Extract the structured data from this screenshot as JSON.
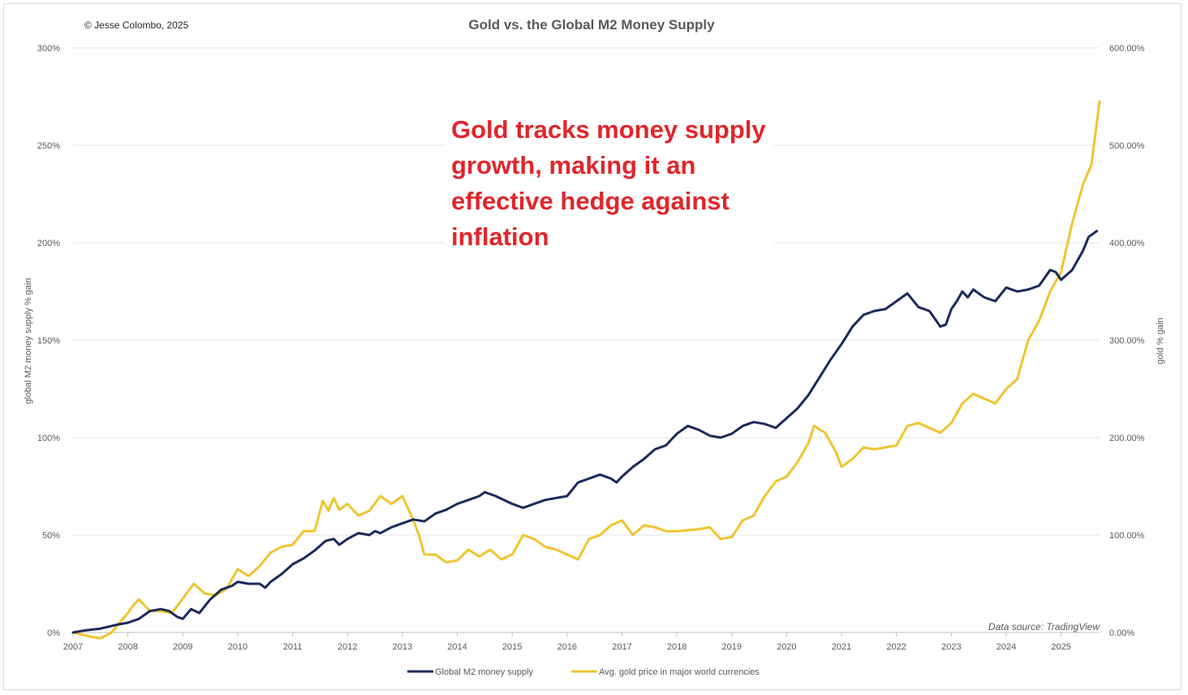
{
  "header": {
    "copyright": "© Jesse Colombo, 2025",
    "title": "Gold vs. the Global M2 Money Supply"
  },
  "annotation": {
    "lines": [
      "Gold tracks money supply",
      "growth, making it an",
      "effective hedge against",
      "inflation"
    ]
  },
  "source_note": "Data source: TradingView",
  "colors": {
    "m2": "#1b2a5c",
    "gold": "#f0c430",
    "annotation": "#e0262b",
    "grid": "#e3e3e3",
    "text": "#595959"
  },
  "chart_data": {
    "type": "line",
    "title": "Gold vs. the Global M2 Money Supply",
    "ylabel_left": "global M2 money supply % gain",
    "ylabel_right": "gold % gain",
    "ylim_left": [
      0,
      300
    ],
    "ylim_right": [
      0,
      600
    ],
    "xlim": [
      2007,
      2025.7
    ],
    "grid": true,
    "legend_position": "bottom",
    "y_ticks_left": [
      "0%",
      "50%",
      "100%",
      "150%",
      "200%",
      "250%",
      "300%"
    ],
    "y_ticks_right": [
      "0.00%",
      "100.00%",
      "200.00%",
      "300.00%",
      "400.00%",
      "500.00%",
      "600.00%"
    ],
    "x_ticks": [
      "2007",
      "2008",
      "2009",
      "2010",
      "2011",
      "2012",
      "2013",
      "2014",
      "2015",
      "2016",
      "2017",
      "2018",
      "2019",
      "2020",
      "2021",
      "2022",
      "2023",
      "2024",
      "2025"
    ],
    "series": [
      {
        "name": "Global M2 money supply",
        "axis": "left",
        "x": [
          2007.0,
          2007.2,
          2007.5,
          2007.8,
          2008.0,
          2008.2,
          2008.4,
          2008.6,
          2008.75,
          2008.9,
          2009.0,
          2009.15,
          2009.3,
          2009.5,
          2009.7,
          2009.9,
          2010.0,
          2010.2,
          2010.4,
          2010.5,
          2010.6,
          2010.8,
          2011.0,
          2011.2,
          2011.4,
          2011.6,
          2011.75,
          2011.85,
          2012.0,
          2012.2,
          2012.4,
          2012.5,
          2012.6,
          2012.8,
          2013.0,
          2013.2,
          2013.4,
          2013.6,
          2013.8,
          2014.0,
          2014.2,
          2014.4,
          2014.5,
          2014.7,
          2015.0,
          2015.2,
          2015.4,
          2015.6,
          2015.8,
          2016.0,
          2016.2,
          2016.4,
          2016.6,
          2016.8,
          2016.9,
          2017.0,
          2017.2,
          2017.4,
          2017.6,
          2017.8,
          2018.0,
          2018.2,
          2018.4,
          2018.6,
          2018.8,
          2019.0,
          2019.2,
          2019.4,
          2019.6,
          2019.8,
          2020.0,
          2020.2,
          2020.4,
          2020.6,
          2020.8,
          2021.0,
          2021.2,
          2021.4,
          2021.6,
          2021.8,
          2022.0,
          2022.2,
          2022.4,
          2022.6,
          2022.8,
          2022.9,
          2023.0,
          2023.1,
          2023.2,
          2023.3,
          2023.4,
          2023.6,
          2023.8,
          2024.0,
          2024.2,
          2024.4,
          2024.6,
          2024.8,
          2024.9,
          2025.0,
          2025.2,
          2025.4,
          2025.5,
          2025.65
        ],
        "values": [
          0,
          1,
          2,
          4,
          5,
          7,
          11,
          12,
          11,
          8,
          7,
          12,
          10,
          17,
          22,
          24,
          26,
          25,
          25,
          23,
          26,
          30,
          35,
          38,
          42,
          47,
          48,
          45,
          48,
          51,
          50,
          52,
          51,
          54,
          56,
          58,
          57,
          61,
          63,
          66,
          68,
          70,
          72,
          70,
          66,
          64,
          66,
          68,
          69,
          70,
          77,
          79,
          81,
          79,
          77,
          80,
          85,
          89,
          94,
          96,
          102,
          106,
          104,
          101,
          100,
          102,
          106,
          108,
          107,
          105,
          110,
          115,
          122,
          131,
          140,
          148,
          157,
          163,
          165,
          166,
          170,
          174,
          167,
          165,
          157,
          158,
          166,
          170,
          175,
          172,
          176,
          172,
          170,
          177,
          175,
          176,
          178,
          186,
          185,
          181,
          186,
          196,
          203,
          206
        ]
      },
      {
        "name": "Avg. gold price in major world currencies",
        "axis": "right",
        "x": [
          2007.0,
          2007.3,
          2007.5,
          2007.7,
          2008.0,
          2008.1,
          2008.2,
          2008.4,
          2008.6,
          2008.8,
          2009.0,
          2009.2,
          2009.4,
          2009.6,
          2009.8,
          2010.0,
          2010.2,
          2010.4,
          2010.6,
          2010.8,
          2011.0,
          2011.2,
          2011.4,
          2011.55,
          2011.65,
          2011.75,
          2011.85,
          2012.0,
          2012.2,
          2012.4,
          2012.6,
          2012.8,
          2013.0,
          2013.2,
          2013.3,
          2013.4,
          2013.6,
          2013.8,
          2014.0,
          2014.2,
          2014.4,
          2014.6,
          2014.8,
          2015.0,
          2015.2,
          2015.4,
          2015.6,
          2015.8,
          2016.0,
          2016.2,
          2016.4,
          2016.6,
          2016.8,
          2017.0,
          2017.2,
          2017.4,
          2017.6,
          2017.8,
          2018.0,
          2018.2,
          2018.4,
          2018.6,
          2018.8,
          2019.0,
          2019.2,
          2019.4,
          2019.6,
          2019.8,
          2020.0,
          2020.2,
          2020.4,
          2020.5,
          2020.7,
          2020.9,
          2021.0,
          2021.2,
          2021.4,
          2021.6,
          2021.8,
          2022.0,
          2022.2,
          2022.4,
          2022.6,
          2022.8,
          2023.0,
          2023.2,
          2023.4,
          2023.6,
          2023.8,
          2024.0,
          2024.2,
          2024.4,
          2024.6,
          2024.8,
          2025.0,
          2025.2,
          2025.4,
          2025.55,
          2025.7
        ],
        "values": [
          0,
          -4,
          -6,
          0,
          20,
          28,
          34,
          22,
          22,
          20,
          35,
          50,
          40,
          38,
          45,
          65,
          58,
          68,
          82,
          88,
          90,
          104,
          104,
          135,
          125,
          138,
          126,
          132,
          120,
          125,
          140,
          132,
          140,
          115,
          100,
          80,
          80,
          72,
          74,
          85,
          78,
          85,
          75,
          80,
          100,
          96,
          88,
          85,
          80,
          75,
          96,
          100,
          110,
          115,
          100,
          110,
          108,
          104,
          104,
          105,
          106,
          108,
          96,
          98,
          115,
          120,
          140,
          155,
          160,
          175,
          195,
          212,
          205,
          185,
          170,
          178,
          190,
          188,
          190,
          192,
          212,
          215,
          210,
          205,
          215,
          235,
          245,
          240,
          235,
          250,
          260,
          300,
          320,
          350,
          370,
          420,
          460,
          480,
          545
        ]
      }
    ]
  }
}
